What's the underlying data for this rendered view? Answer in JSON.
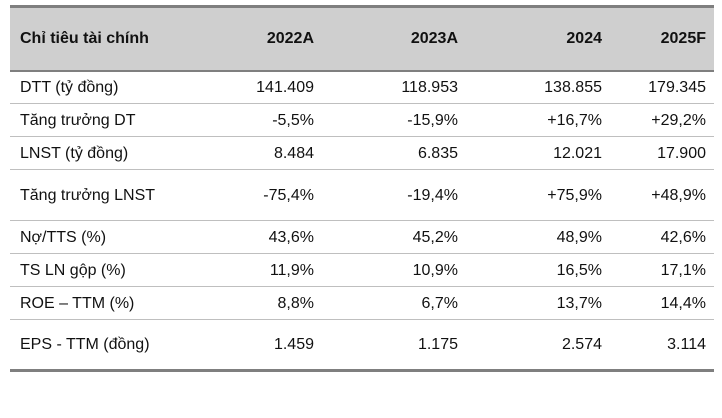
{
  "table": {
    "header": {
      "label": "Chỉ tiêu tài chính",
      "years": [
        "2022A",
        "2023A",
        "2024",
        "2025F"
      ]
    },
    "rows": [
      {
        "label": "DTT (tỷ đồng)",
        "values": [
          "141.409",
          "118.953",
          "138.855",
          "179.345"
        ]
      },
      {
        "label": "Tăng trưởng DT",
        "values": [
          "-5,5%",
          "-15,9%",
          "+16,7%",
          "+29,2%"
        ]
      },
      {
        "label": "LNST (tỷ đồng)",
        "values": [
          "8.484",
          "6.835",
          "12.021",
          "17.900"
        ]
      },
      {
        "label": "Tăng trưởng LNST",
        "values": [
          "-75,4%",
          "-19,4%",
          "+75,9%",
          "+48,9%"
        ]
      },
      {
        "label": "Nợ/TTS (%)",
        "values": [
          "43,6%",
          "45,2%",
          "48,9%",
          "42,6%"
        ]
      },
      {
        "label": "TS LN gộp (%)",
        "values": [
          "11,9%",
          "10,9%",
          "16,5%",
          "17,1%"
        ]
      },
      {
        "label": "ROE – TTM (%)",
        "values": [
          "8,8%",
          "6,7%",
          "13,7%",
          "14,4%"
        ]
      },
      {
        "label": "EPS - TTM (đồng)",
        "values": [
          "1.459",
          "1.175",
          "2.574",
          "3.114"
        ]
      }
    ]
  }
}
